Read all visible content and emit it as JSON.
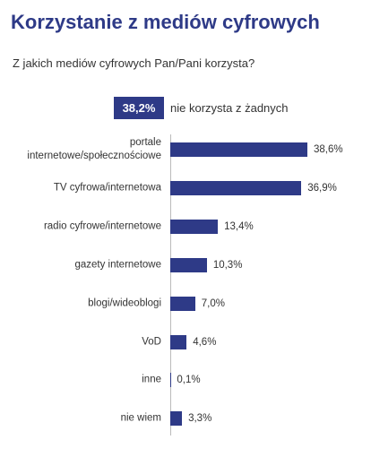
{
  "chart_data": {
    "type": "bar",
    "orientation": "horizontal",
    "title": "Korzystanie z mediów cyfrowych",
    "subtitle": "Z jakich mediów cyfrowych Pan/Pani korzysta?",
    "callout_label": "38,2%",
    "callout_text": "nie korzysta z żadnych",
    "categories": [
      "portale\ninternetowe/społecznościowe",
      "TV cyfrowa/internetowa",
      "radio cyfrowe/internetowe",
      "gazety internetowe",
      "blogi/wideoblogi",
      "VoD",
      "inne",
      "nie wiem"
    ],
    "values": [
      38.6,
      36.9,
      13.4,
      10.3,
      7.0,
      4.6,
      0.1,
      3.3
    ],
    "value_labels": [
      "38,6%",
      "36,9%",
      "13,4%",
      "10,3%",
      "7,0%",
      "4,6%",
      "0,1%",
      "3,3%"
    ],
    "color": "#2e3a87"
  }
}
